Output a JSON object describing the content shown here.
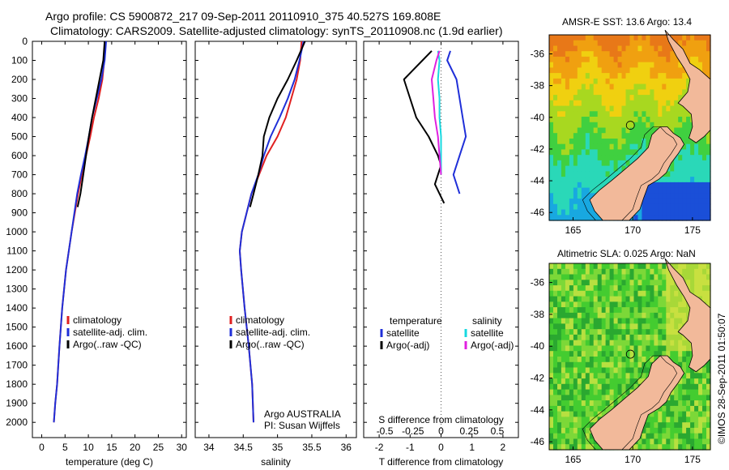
{
  "header": {
    "line1": "Argo profile: CS 5900872_217 09-Sep-2011 20110910_375 40.527S 169.808E",
    "line2": "Climatology: CARS2009. Satellite-adjusted climatology: synTS_20110908.nc (1.9d earlier)"
  },
  "colors": {
    "climatology": "#e02020",
    "satellite": "#1f2fd8",
    "argo": "#000000",
    "sat_salinity": "#17d8e0",
    "argo_salinity": "#e020e0",
    "land": "#f2b99a"
  },
  "chart_data": [
    {
      "type": "line",
      "name": "temperature-profile",
      "xlabel": "temperature (deg C)",
      "ylabel": "",
      "xlim": [
        -2,
        31
      ],
      "ylim": [
        2080,
        0
      ],
      "xticks": [
        0,
        5,
        10,
        15,
        20,
        25,
        30
      ],
      "yticks": [
        0,
        100,
        200,
        300,
        400,
        500,
        600,
        700,
        800,
        900,
        1000,
        1100,
        1200,
        1300,
        1400,
        1500,
        1600,
        1700,
        1800,
        1900,
        2000
      ],
      "legend": [
        "climatology",
        "satellite-adj. clim.",
        "Argo(..raw -QC)"
      ],
      "series": [
        {
          "name": "climatology",
          "color": "#e02020",
          "x": [
            13.6,
            13.4,
            13.0,
            12.2,
            11.2,
            10.4,
            9.5,
            8.6,
            7.8,
            6.4,
            5.2,
            4.4,
            3.8,
            3.3,
            2.9,
            2.6
          ],
          "y": [
            0,
            100,
            200,
            300,
            400,
            500,
            600,
            700,
            800,
            1000,
            1200,
            1400,
            1600,
            1800,
            1900,
            2000
          ]
        },
        {
          "name": "satellite-adj. clim.",
          "color": "#1f2fd8",
          "x": [
            13.8,
            13.5,
            12.8,
            11.8,
            10.8,
            10.1,
            9.3,
            8.4,
            7.6,
            6.4,
            5.2,
            4.4,
            3.8,
            3.3,
            2.9,
            2.6
          ],
          "y": [
            0,
            100,
            200,
            300,
            400,
            500,
            600,
            700,
            800,
            1000,
            1200,
            1400,
            1600,
            1800,
            1900,
            2000
          ]
        },
        {
          "name": "Argo(..raw -QC)",
          "color": "#000000",
          "x": [
            13.5,
            13.2,
            12.4,
            11.6,
            10.8,
            10.1,
            9.5,
            8.9,
            8.3,
            7.7
          ],
          "y": [
            0,
            100,
            200,
            300,
            400,
            500,
            600,
            700,
            800,
            870
          ]
        }
      ]
    },
    {
      "type": "line",
      "name": "salinity-profile",
      "xlabel": "salinity",
      "xlim": [
        33.8,
        36.15
      ],
      "ylim": [
        2080,
        0
      ],
      "xticks": [
        34,
        34.5,
        35,
        35.5,
        36
      ],
      "xticklabels": [
        "34",
        "34.5",
        "35",
        "35.5",
        "36"
      ],
      "legend": [
        "climatology",
        "satellite-adj. clim.",
        "Argo(..raw -QC)"
      ],
      "annotation": [
        "Argo AUSTRALIA",
        "PI: Susan Wijffels"
      ],
      "series": [
        {
          "name": "climatology",
          "color": "#e02020",
          "x": [
            35.35,
            35.33,
            35.28,
            35.2,
            35.12,
            35.0,
            34.84,
            34.73,
            34.62,
            34.55,
            34.48,
            34.45,
            34.47,
            34.52,
            34.58,
            34.63,
            34.65
          ],
          "y": [
            0,
            100,
            200,
            300,
            400,
            500,
            600,
            700,
            800,
            900,
            1000,
            1100,
            1200,
            1400,
            1600,
            1800,
            2000
          ]
        },
        {
          "name": "satellite-adj. clim.",
          "color": "#1f2fd8",
          "x": [
            35.38,
            35.32,
            35.25,
            35.15,
            35.03,
            34.9,
            34.8,
            34.72,
            34.62,
            34.55,
            34.48,
            34.45,
            34.47,
            34.52,
            34.58,
            34.63,
            34.65
          ],
          "y": [
            0,
            100,
            200,
            300,
            400,
            500,
            600,
            700,
            800,
            900,
            1000,
            1100,
            1200,
            1400,
            1600,
            1800,
            2000
          ]
        },
        {
          "name": "Argo(..raw -QC)",
          "color": "#000000",
          "x": [
            35.4,
            35.28,
            35.15,
            35.0,
            34.88,
            34.8,
            34.78,
            34.72,
            34.65,
            34.6
          ],
          "y": [
            0,
            100,
            200,
            300,
            400,
            500,
            600,
            700,
            800,
            870
          ]
        }
      ]
    },
    {
      "type": "line",
      "name": "difference-profile",
      "xlabel": "T difference from climatology",
      "xlabel_top": "S difference from climatology",
      "xlim": [
        -2.5,
        2.5
      ],
      "ylim": [
        2080,
        0
      ],
      "xticks": [
        -2,
        -1,
        0,
        1,
        2
      ],
      "xticklabels": [
        "-2",
        "-1",
        "0",
        "1",
        "2"
      ],
      "sticks": [
        -0.5,
        -0.25,
        0,
        0.25,
        0.5
      ],
      "sticklabels": [
        "-0.5",
        "-0.25",
        "0",
        "0.25",
        "0.5"
      ],
      "legend_temperature": [
        "temperature",
        "satellite",
        "Argo(-adj)"
      ],
      "legend_salinity": [
        "salinity",
        "satellite",
        "Argo(-adj)"
      ],
      "series": [
        {
          "name": "temperature satellite",
          "color": "#1f2fd8",
          "x": [
            0.3,
            0.2,
            0.5,
            0.6,
            0.7,
            0.8,
            0.6,
            0.5,
            0.4,
            0.5,
            0.6
          ],
          "y": [
            50,
            100,
            200,
            300,
            400,
            500,
            600,
            650,
            700,
            750,
            800
          ]
        },
        {
          "name": "temperature Argo(-adj)",
          "color": "#000000",
          "x": [
            -0.3,
            -0.6,
            -1.2,
            -1.0,
            -0.8,
            -0.4,
            -0.1,
            0.0,
            -0.1,
            -0.2,
            0.1
          ],
          "y": [
            50,
            100,
            200,
            300,
            400,
            500,
            600,
            650,
            700,
            750,
            850
          ]
        },
        {
          "name": "salinity satellite",
          "color": "#17d8e0",
          "x": [
            -0.1,
            -0.05,
            -0.1,
            -0.05,
            -0.05,
            0.0,
            0.0,
            0.0
          ],
          "y": [
            50,
            100,
            200,
            300,
            400,
            500,
            600,
            700
          ]
        },
        {
          "name": "salinity Argo(-adj)",
          "color": "#e020e0",
          "x": [
            -0.05,
            -0.15,
            -0.3,
            -0.25,
            -0.2,
            -0.1,
            -0.05,
            0.0
          ],
          "y": [
            50,
            100,
            200,
            300,
            400,
            500,
            600,
            700
          ]
        }
      ]
    },
    {
      "type": "heatmap",
      "name": "sst-map",
      "title": "AMSR-E SST: 13.6 Argo: 13.4",
      "xlim": [
        163,
        176.5
      ],
      "ylim": [
        -46.5,
        -34.8
      ],
      "xticks": [
        165,
        170,
        175
      ],
      "yticks": [
        -36,
        -38,
        -40,
        -42,
        -44,
        -46
      ],
      "marker": {
        "lon": 169.8,
        "lat": -40.5
      }
    },
    {
      "type": "heatmap",
      "name": "sla-map",
      "title": "Altimetric SLA: 0.025 Argo: NaN",
      "xlim": [
        163,
        176.5
      ],
      "ylim": [
        -46.5,
        -34.8
      ],
      "xticks": [
        165,
        170,
        175
      ],
      "yticks": [
        -36,
        -38,
        -40,
        -42,
        -44,
        -46
      ],
      "marker": {
        "lon": 169.8,
        "lat": -40.5
      }
    }
  ],
  "stamp": "©IMOS 28-Sep-2011 01:50:07"
}
